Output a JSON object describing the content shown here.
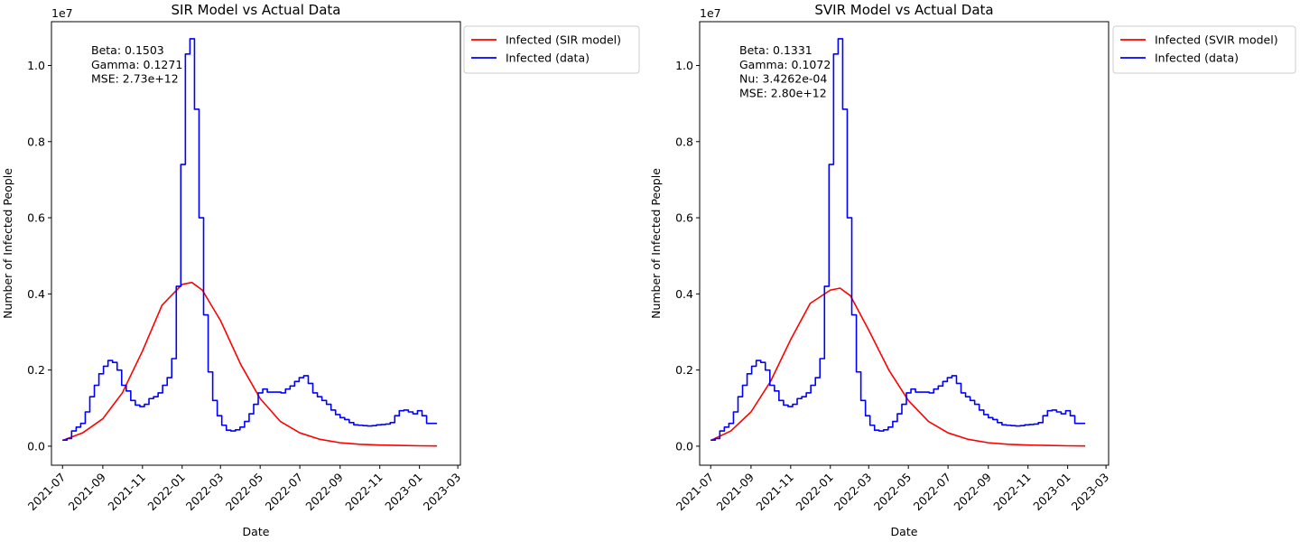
{
  "chart_data": [
    {
      "type": "line",
      "title": "SIR Model vs Actual Data",
      "xlabel": "Date",
      "ylabel": "Number of Infected People",
      "y_scale_label": "1e7",
      "ylim": [
        -0.05,
        1.115
      ],
      "xlim": [
        "2021-06-14",
        "2023-03-05"
      ],
      "x_ticks": [
        "2021-07-01",
        "2021-09-01",
        "2021-11-01",
        "2022-01-01",
        "2022-03-01",
        "2022-05-01",
        "2022-07-01",
        "2022-09-01",
        "2022-11-01",
        "2023-01-01",
        "2023-03-01"
      ],
      "x_tick_labels": [
        "2021-07",
        "2021-09",
        "2021-11",
        "2022-01",
        "2022-03",
        "2022-05",
        "2022-07",
        "2022-09",
        "2022-11",
        "2023-01",
        "2023-03"
      ],
      "y_ticks": [
        0.0,
        0.2,
        0.4,
        0.6,
        0.8,
        1.0
      ],
      "y_tick_labels": [
        "0.0",
        "0.2",
        "0.4",
        "0.6",
        "0.8",
        "1.0"
      ],
      "grid": false,
      "legend_position": "outside-right-top",
      "annotations": [
        "Beta: 0.1503",
        "Gamma: 0.1271",
        "MSE: 2.73e+12"
      ],
      "series": [
        {
          "name": "Infected (SIR model)",
          "color": "#ff0000",
          "x": [
            "2021-07-01",
            "2021-08-01",
            "2021-09-01",
            "2021-10-01",
            "2021-11-01",
            "2021-12-01",
            "2022-01-01",
            "2022-01-16",
            "2022-02-01",
            "2022-03-01",
            "2022-04-01",
            "2022-05-01",
            "2022-06-01",
            "2022-07-01",
            "2022-08-01",
            "2022-09-01",
            "2022-10-01",
            "2022-11-01",
            "2022-12-01",
            "2023-01-01",
            "2023-01-28"
          ],
          "y": [
            0.015,
            0.035,
            0.072,
            0.14,
            0.25,
            0.37,
            0.425,
            0.43,
            0.41,
            0.33,
            0.215,
            0.125,
            0.065,
            0.035,
            0.018,
            0.009,
            0.005,
            0.003,
            0.002,
            0.001,
            0.0005
          ]
        },
        {
          "name": "Infected (data)",
          "color": "#0000ff",
          "step": true,
          "x": [
            "2021-07-01",
            "2021-07-08",
            "2021-07-15",
            "2021-07-22",
            "2021-07-29",
            "2021-08-05",
            "2021-08-12",
            "2021-08-19",
            "2021-08-26",
            "2021-09-02",
            "2021-09-09",
            "2021-09-16",
            "2021-09-23",
            "2021-09-30",
            "2021-10-07",
            "2021-10-14",
            "2021-10-21",
            "2021-10-28",
            "2021-11-04",
            "2021-11-11",
            "2021-11-18",
            "2021-11-25",
            "2021-12-02",
            "2021-12-09",
            "2021-12-16",
            "2021-12-23",
            "2021-12-30",
            "2022-01-06",
            "2022-01-13",
            "2022-01-20",
            "2022-01-27",
            "2022-02-03",
            "2022-02-10",
            "2022-02-17",
            "2022-02-24",
            "2022-03-03",
            "2022-03-10",
            "2022-03-17",
            "2022-03-24",
            "2022-03-31",
            "2022-04-07",
            "2022-04-14",
            "2022-04-21",
            "2022-04-28",
            "2022-05-05",
            "2022-05-12",
            "2022-05-19",
            "2022-05-26",
            "2022-06-02",
            "2022-06-09",
            "2022-06-16",
            "2022-06-23",
            "2022-06-30",
            "2022-07-07",
            "2022-07-14",
            "2022-07-21",
            "2022-07-28",
            "2022-08-04",
            "2022-08-11",
            "2022-08-18",
            "2022-08-25",
            "2022-09-01",
            "2022-09-08",
            "2022-09-15",
            "2022-09-22",
            "2022-09-29",
            "2022-10-06",
            "2022-10-13",
            "2022-10-20",
            "2022-10-27",
            "2022-11-03",
            "2022-11-10",
            "2022-11-17",
            "2022-11-24",
            "2022-12-01",
            "2022-12-08",
            "2022-12-15",
            "2022-12-22",
            "2022-12-29",
            "2023-01-05",
            "2023-01-12",
            "2023-01-19",
            "2023-01-26",
            "2023-01-28"
          ],
          "y": [
            0.016,
            0.02,
            0.04,
            0.05,
            0.06,
            0.09,
            0.13,
            0.16,
            0.19,
            0.21,
            0.225,
            0.22,
            0.2,
            0.16,
            0.145,
            0.12,
            0.108,
            0.104,
            0.11,
            0.125,
            0.13,
            0.14,
            0.16,
            0.18,
            0.23,
            0.42,
            0.74,
            1.03,
            1.07,
            0.885,
            0.6,
            0.345,
            0.195,
            0.12,
            0.08,
            0.055,
            0.042,
            0.04,
            0.043,
            0.05,
            0.065,
            0.085,
            0.11,
            0.14,
            0.15,
            0.142,
            0.142,
            0.142,
            0.14,
            0.15,
            0.158,
            0.17,
            0.18,
            0.185,
            0.165,
            0.14,
            0.13,
            0.12,
            0.11,
            0.095,
            0.083,
            0.075,
            0.07,
            0.062,
            0.056,
            0.055,
            0.054,
            0.053,
            0.054,
            0.056,
            0.057,
            0.058,
            0.062,
            0.08,
            0.093,
            0.095,
            0.09,
            0.085,
            0.093,
            0.08,
            0.06,
            0.06,
            0.06,
            0.06
          ]
        }
      ]
    },
    {
      "type": "line",
      "title": "SVIR Model vs Actual Data",
      "xlabel": "Date",
      "ylabel": "Number of Infected People",
      "y_scale_label": "1e7",
      "ylim": [
        -0.05,
        1.115
      ],
      "xlim": [
        "2021-06-14",
        "2023-03-05"
      ],
      "x_ticks": [
        "2021-07-01",
        "2021-09-01",
        "2021-11-01",
        "2022-01-01",
        "2022-03-01",
        "2022-05-01",
        "2022-07-01",
        "2022-09-01",
        "2022-11-01",
        "2023-01-01",
        "2023-03-01"
      ],
      "x_tick_labels": [
        "2021-07",
        "2021-09",
        "2021-11",
        "2022-01",
        "2022-03",
        "2022-05",
        "2022-07",
        "2022-09",
        "2022-11",
        "2023-01",
        "2023-03"
      ],
      "y_ticks": [
        0.0,
        0.2,
        0.4,
        0.6,
        0.8,
        1.0
      ],
      "y_tick_labels": [
        "0.0",
        "0.2",
        "0.4",
        "0.6",
        "0.8",
        "1.0"
      ],
      "grid": false,
      "legend_position": "outside-right-top",
      "annotations": [
        "Beta: 0.1331",
        "Gamma: 0.1072",
        "Nu: 3.4262e-04",
        "MSE: 2.80e+12"
      ],
      "series": [
        {
          "name": "Infected (SVIR model)",
          "color": "#ff0000",
          "x": [
            "2021-07-01",
            "2021-08-01",
            "2021-09-01",
            "2021-10-01",
            "2021-11-01",
            "2021-12-01",
            "2022-01-01",
            "2022-01-16",
            "2022-02-01",
            "2022-03-01",
            "2022-04-01",
            "2022-05-01",
            "2022-06-01",
            "2022-07-01",
            "2022-08-01",
            "2022-09-01",
            "2022-10-01",
            "2022-11-01",
            "2022-12-01",
            "2023-01-01",
            "2023-01-28"
          ],
          "y": [
            0.015,
            0.04,
            0.09,
            0.17,
            0.28,
            0.375,
            0.41,
            0.415,
            0.395,
            0.305,
            0.2,
            0.12,
            0.065,
            0.035,
            0.018,
            0.009,
            0.005,
            0.003,
            0.002,
            0.001,
            0.0005
          ]
        },
        {
          "name": "Infected (data)",
          "color": "#0000ff",
          "step": true,
          "x": [
            "2021-07-01",
            "2021-07-08",
            "2021-07-15",
            "2021-07-22",
            "2021-07-29",
            "2021-08-05",
            "2021-08-12",
            "2021-08-19",
            "2021-08-26",
            "2021-09-02",
            "2021-09-09",
            "2021-09-16",
            "2021-09-23",
            "2021-09-30",
            "2021-10-07",
            "2021-10-14",
            "2021-10-21",
            "2021-10-28",
            "2021-11-04",
            "2021-11-11",
            "2021-11-18",
            "2021-11-25",
            "2021-12-02",
            "2021-12-09",
            "2021-12-16",
            "2021-12-23",
            "2021-12-30",
            "2022-01-06",
            "2022-01-13",
            "2022-01-20",
            "2022-01-27",
            "2022-02-03",
            "2022-02-10",
            "2022-02-17",
            "2022-02-24",
            "2022-03-03",
            "2022-03-10",
            "2022-03-17",
            "2022-03-24",
            "2022-03-31",
            "2022-04-07",
            "2022-04-14",
            "2022-04-21",
            "2022-04-28",
            "2022-05-05",
            "2022-05-12",
            "2022-05-19",
            "2022-05-26",
            "2022-06-02",
            "2022-06-09",
            "2022-06-16",
            "2022-06-23",
            "2022-06-30",
            "2022-07-07",
            "2022-07-14",
            "2022-07-21",
            "2022-07-28",
            "2022-08-04",
            "2022-08-11",
            "2022-08-18",
            "2022-08-25",
            "2022-09-01",
            "2022-09-08",
            "2022-09-15",
            "2022-09-22",
            "2022-09-29",
            "2022-10-06",
            "2022-10-13",
            "2022-10-20",
            "2022-10-27",
            "2022-11-03",
            "2022-11-10",
            "2022-11-17",
            "2022-11-24",
            "2022-12-01",
            "2022-12-08",
            "2022-12-15",
            "2022-12-22",
            "2022-12-29",
            "2023-01-05",
            "2023-01-12",
            "2023-01-19",
            "2023-01-26",
            "2023-01-28"
          ],
          "y": [
            0.016,
            0.02,
            0.04,
            0.05,
            0.06,
            0.09,
            0.13,
            0.16,
            0.19,
            0.21,
            0.225,
            0.22,
            0.2,
            0.16,
            0.145,
            0.12,
            0.108,
            0.104,
            0.11,
            0.125,
            0.13,
            0.14,
            0.16,
            0.18,
            0.23,
            0.42,
            0.74,
            1.03,
            1.07,
            0.885,
            0.6,
            0.345,
            0.195,
            0.12,
            0.08,
            0.055,
            0.042,
            0.04,
            0.043,
            0.05,
            0.065,
            0.085,
            0.11,
            0.14,
            0.15,
            0.142,
            0.142,
            0.142,
            0.14,
            0.15,
            0.158,
            0.17,
            0.18,
            0.185,
            0.165,
            0.14,
            0.13,
            0.12,
            0.11,
            0.095,
            0.083,
            0.075,
            0.07,
            0.062,
            0.056,
            0.055,
            0.054,
            0.053,
            0.054,
            0.056,
            0.057,
            0.058,
            0.062,
            0.08,
            0.093,
            0.095,
            0.09,
            0.085,
            0.093,
            0.08,
            0.06,
            0.06,
            0.06,
            0.06
          ]
        }
      ]
    }
  ]
}
